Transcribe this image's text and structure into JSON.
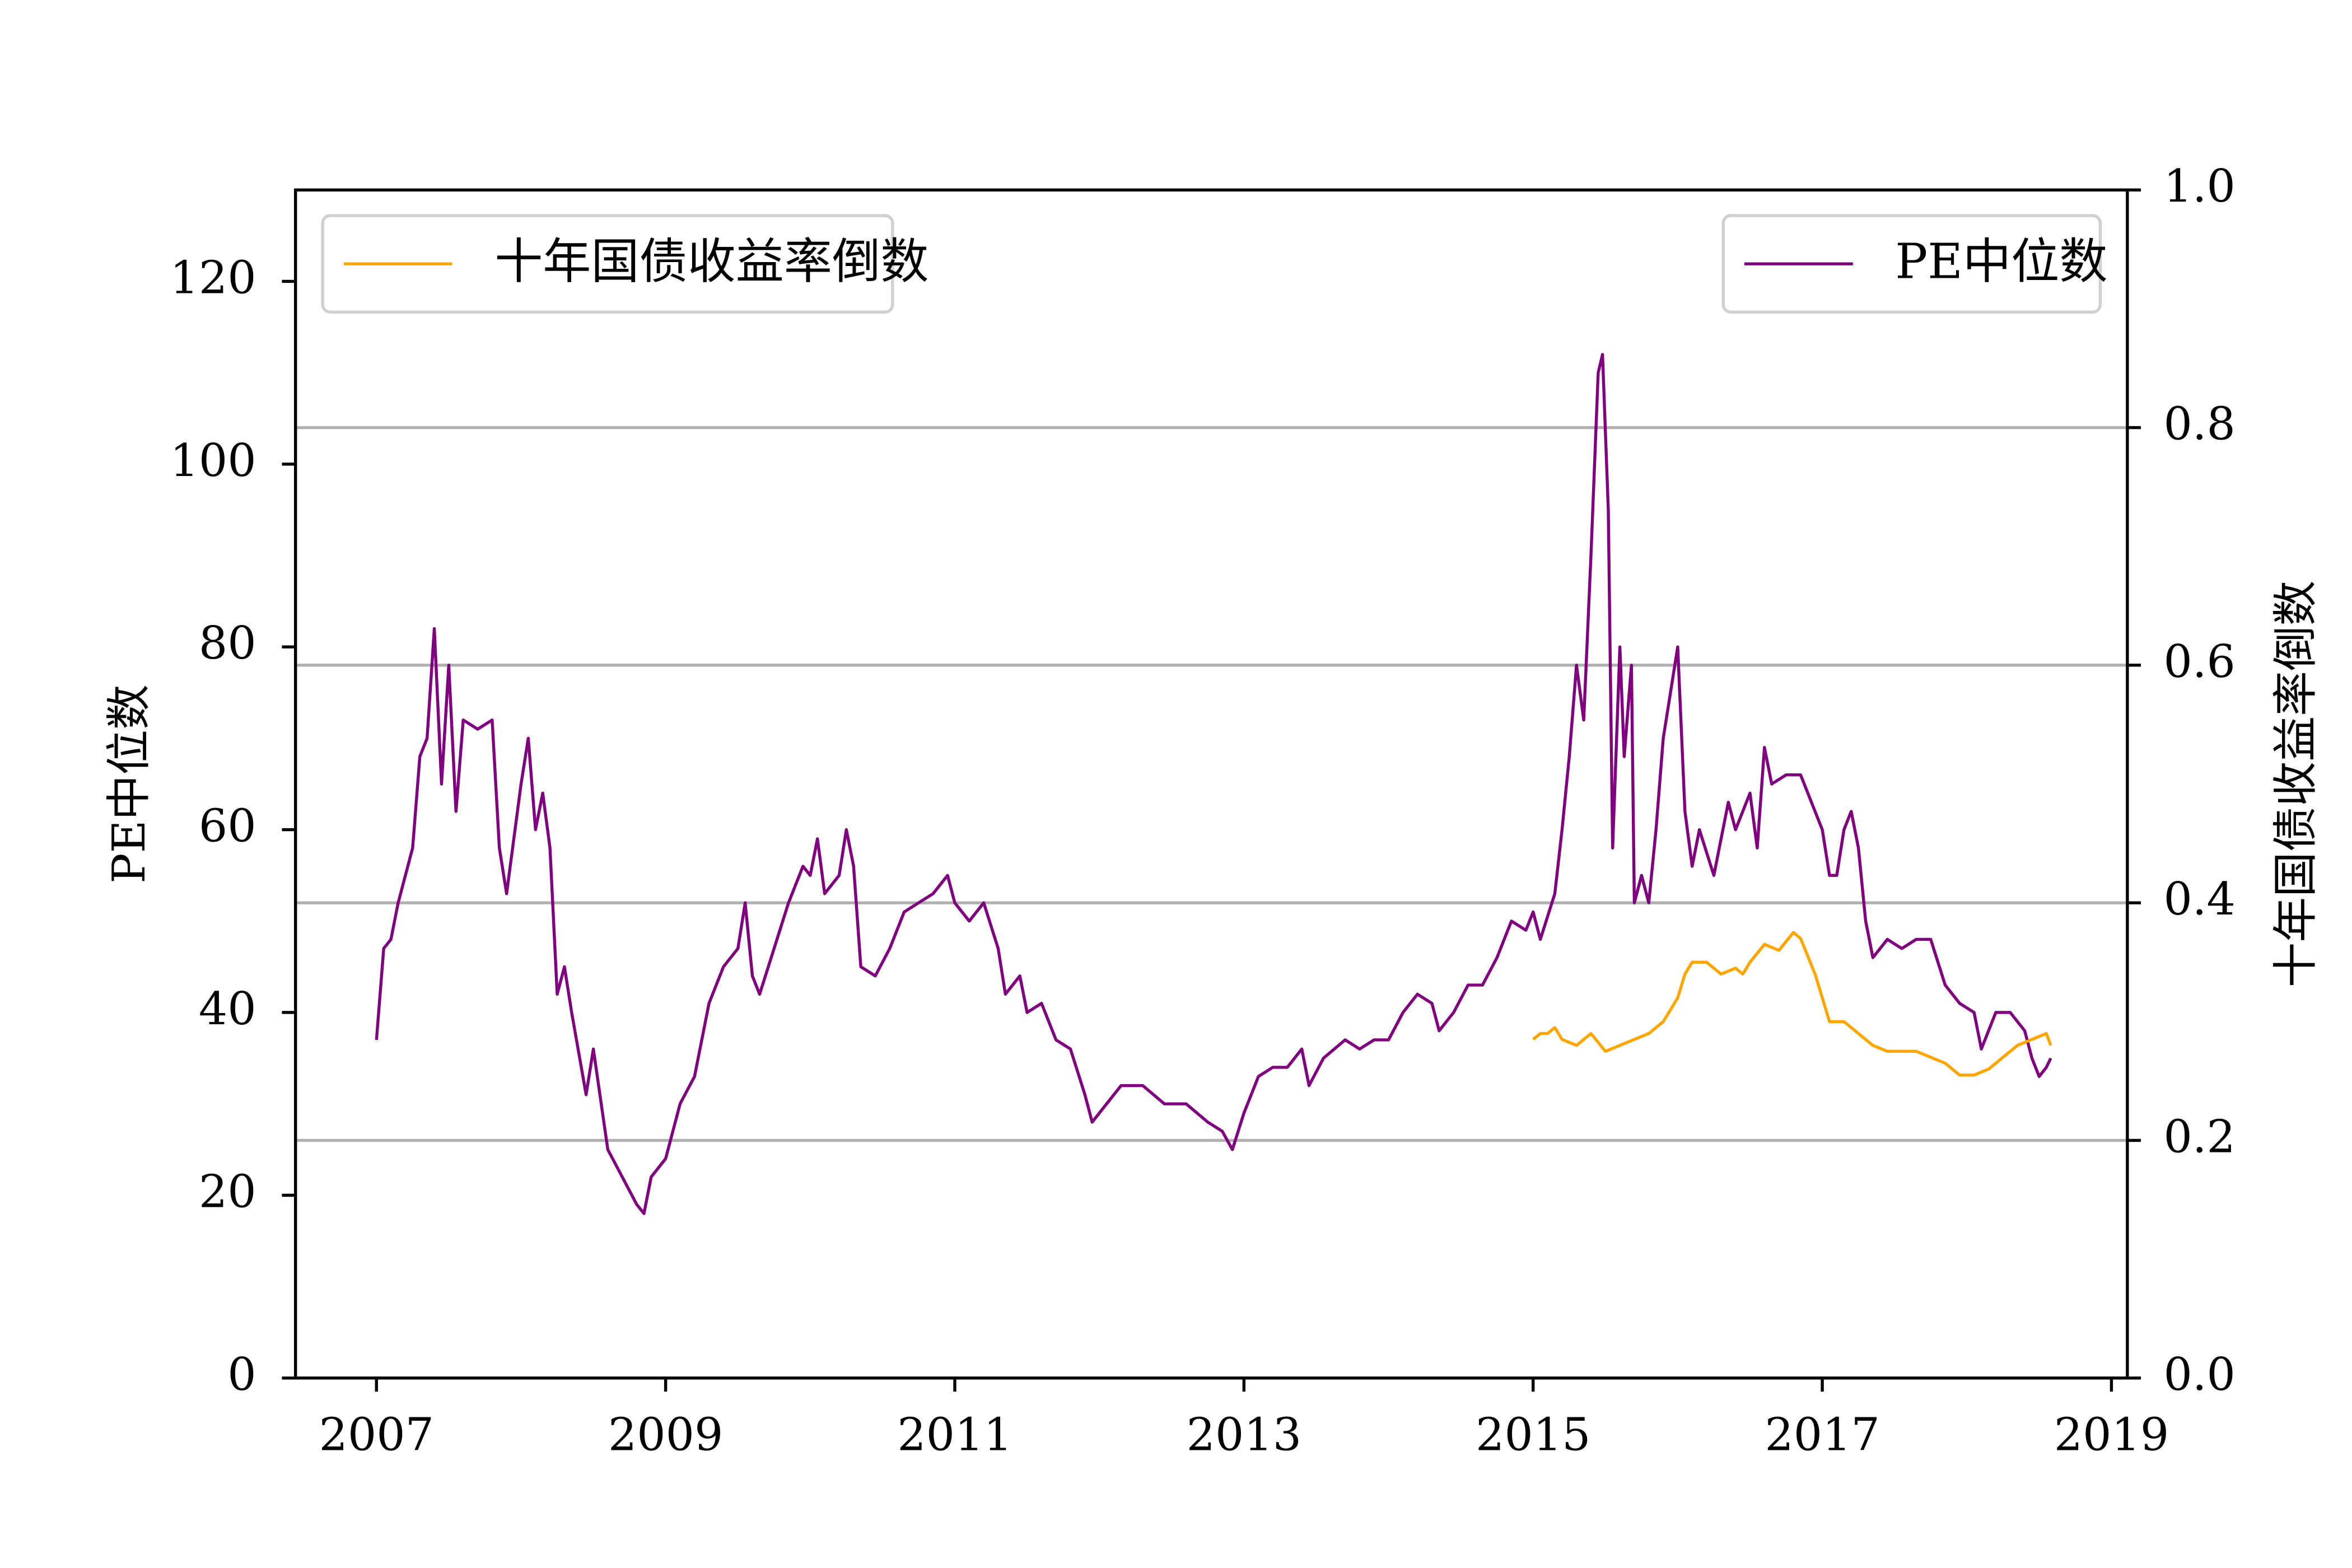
{
  "chart_data": {
    "type": "line",
    "ylabel": "PE中位数",
    "y2label": "十年国债收益率倒数",
    "xlim": [
      2006.44,
      2019.11
    ],
    "xticks": [
      2007,
      2009,
      2011,
      2013,
      2015,
      2017,
      2019
    ],
    "ylim": [
      0,
      130
    ],
    "yticks": [
      0,
      20,
      40,
      60,
      80,
      100,
      120
    ],
    "y2lim": [
      0,
      1
    ],
    "y2ticks": [
      {
        "value": 0,
        "label": "0.0"
      },
      0.2,
      0.4,
      0.6,
      0.8,
      {
        "value": 1,
        "label": "1.0"
      }
    ],
    "grid": "y2",
    "series": [
      {
        "name": "PE中位数",
        "color": "#800080",
        "axis": "y",
        "legend_loc": "upper right",
        "x": [
          2007.0,
          2007.05,
          2007.1,
          2007.15,
          2007.25,
          2007.3,
          2007.35,
          2007.4,
          2007.45,
          2007.5,
          2007.55,
          2007.6,
          2007.7,
          2007.8,
          2007.85,
          2007.9,
          2008.0,
          2008.05,
          2008.1,
          2008.15,
          2008.2,
          2008.25,
          2008.3,
          2008.35,
          2008.45,
          2008.5,
          2008.6,
          2008.7,
          2008.8,
          2008.85,
          2008.9,
          2009.0,
          2009.1,
          2009.2,
          2009.3,
          2009.4,
          2009.5,
          2009.55,
          2009.6,
          2009.65,
          2009.75,
          2009.85,
          2009.95,
          2010.0,
          2010.05,
          2010.1,
          2010.2,
          2010.25,
          2010.3,
          2010.35,
          2010.45,
          2010.55,
          2010.65,
          2010.75,
          2010.85,
          2010.95,
          2011.0,
          2011.1,
          2011.2,
          2011.3,
          2011.35,
          2011.45,
          2011.5,
          2011.6,
          2011.7,
          2011.8,
          2011.9,
          2011.95,
          2012.05,
          2012.15,
          2012.3,
          2012.45,
          2012.6,
          2012.75,
          2012.85,
          2012.92,
          2013.0,
          2013.1,
          2013.2,
          2013.3,
          2013.4,
          2013.45,
          2013.55,
          2013.7,
          2013.8,
          2013.9,
          2014.0,
          2014.1,
          2014.2,
          2014.3,
          2014.35,
          2014.45,
          2014.55,
          2014.65,
          2014.75,
          2014.85,
          2014.95,
          2015.0,
          2015.05,
          2015.15,
          2015.2,
          2015.25,
          2015.3,
          2015.35,
          2015.4,
          2015.45,
          2015.48,
          2015.52,
          2015.55,
          2015.6,
          2015.63,
          2015.68,
          2015.7,
          2015.75,
          2015.8,
          2015.85,
          2015.9,
          2015.95,
          2016.0,
          2016.05,
          2016.1,
          2016.15,
          2016.25,
          2016.35,
          2016.4,
          2016.5,
          2016.55,
          2016.6,
          2016.65,
          2016.75,
          2016.85,
          2016.95,
          2017.0,
          2017.05,
          2017.1,
          2017.15,
          2017.2,
          2017.25,
          2017.3,
          2017.35,
          2017.45,
          2017.55,
          2017.65,
          2017.75,
          2017.85,
          2017.95,
          2018.05,
          2018.1,
          2018.2,
          2018.3,
          2018.4,
          2018.45,
          2018.5,
          2018.55,
          2018.58
        ],
        "values": [
          37,
          47,
          48,
          52,
          58,
          68,
          70,
          82,
          65,
          78,
          62,
          72,
          71,
          72,
          58,
          53,
          65,
          70,
          60,
          64,
          58,
          42,
          45,
          40,
          31,
          36,
          25,
          22,
          19,
          18,
          22,
          24,
          30,
          33,
          41,
          45,
          47,
          52,
          44,
          42,
          47,
          52,
          56,
          55,
          59,
          53,
          55,
          60,
          56,
          45,
          44,
          47,
          51,
          52,
          53,
          55,
          52,
          50,
          52,
          47,
          42,
          44,
          40,
          41,
          37,
          36,
          31,
          28,
          30,
          32,
          32,
          30,
          30,
          28,
          27,
          25,
          29,
          33,
          34,
          34,
          36,
          32,
          35,
          37,
          36,
          37,
          37,
          40,
          42,
          41,
          38,
          40,
          43,
          43,
          46,
          50,
          49,
          51,
          48,
          53,
          60,
          68,
          78,
          72,
          90,
          110,
          112,
          95,
          58,
          80,
          68,
          78,
          52,
          55,
          52,
          60,
          70,
          75,
          80,
          62,
          56,
          60,
          55,
          63,
          60,
          64,
          58,
          69,
          65,
          66,
          66,
          62,
          60,
          55,
          55,
          60,
          62,
          58,
          50,
          46,
          48,
          47,
          48,
          48,
          43,
          41,
          40,
          36,
          40,
          40,
          38,
          35,
          33,
          34,
          35
        ]
      },
      {
        "name": "十年国债收益率倒数",
        "color": "#ffa500",
        "axis": "y2",
        "legend_loc": "upper left",
        "x": [
          2015.0,
          2015.05,
          2015.1,
          2015.15,
          2015.2,
          2015.3,
          2015.4,
          2015.5,
          2015.6,
          2015.7,
          2015.8,
          2015.9,
          2016.0,
          2016.05,
          2016.1,
          2016.2,
          2016.3,
          2016.4,
          2016.45,
          2016.5,
          2016.6,
          2016.7,
          2016.8,
          2016.85,
          2016.95,
          2017.0,
          2017.05,
          2017.15,
          2017.25,
          2017.35,
          2017.45,
          2017.55,
          2017.65,
          2017.75,
          2017.85,
          2017.95,
          2018.05,
          2018.15,
          2018.25,
          2018.35,
          2018.45,
          2018.55,
          2018.58
        ],
        "values": [
          0.285,
          0.29,
          0.29,
          0.295,
          0.285,
          0.28,
          0.29,
          0.275,
          0.28,
          0.285,
          0.29,
          0.3,
          0.32,
          0.34,
          0.35,
          0.35,
          0.34,
          0.345,
          0.34,
          0.35,
          0.365,
          0.36,
          0.375,
          0.37,
          0.34,
          0.32,
          0.3,
          0.3,
          0.29,
          0.28,
          0.275,
          0.275,
          0.275,
          0.27,
          0.265,
          0.255,
          0.255,
          0.26,
          0.27,
          0.28,
          0.285,
          0.29,
          0.28
        ]
      }
    ]
  }
}
